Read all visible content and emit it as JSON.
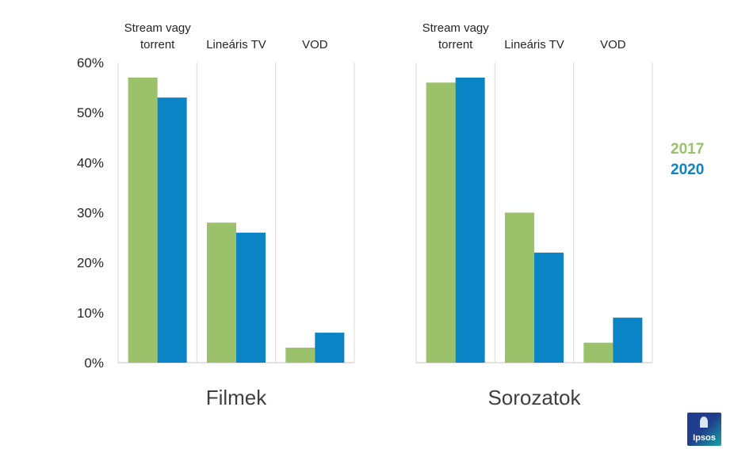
{
  "chart_data": [
    {
      "type": "bar",
      "title": "Filmek",
      "categories": [
        "Stream vagy torrent",
        "Lineáris TV",
        "VOD"
      ],
      "series": [
        {
          "name": "2017",
          "values": [
            57,
            28,
            3
          ]
        },
        {
          "name": "2020",
          "values": [
            53,
            26,
            6
          ]
        }
      ],
      "ylim": [
        0,
        60
      ],
      "yticks": [
        "0%",
        "10%",
        "20%",
        "30%",
        "40%",
        "50%",
        "60%"
      ],
      "ytick_values": [
        0,
        10,
        20,
        30,
        40,
        50,
        60
      ],
      "show_y_axis": true
    },
    {
      "type": "bar",
      "title": "Sorozatok",
      "categories": [
        "Stream vagy torrent",
        "Lineáris TV",
        "VOD"
      ],
      "series": [
        {
          "name": "2017",
          "values": [
            56,
            30,
            4
          ]
        },
        {
          "name": "2020",
          "values": [
            57,
            22,
            9
          ]
        }
      ],
      "ylim": [
        0,
        60
      ],
      "show_y_axis": false
    }
  ],
  "legend": {
    "placement": "right",
    "items": [
      {
        "label": "2017",
        "color": "#9bc26b"
      },
      {
        "label": "2020",
        "color": "#0b84c6"
      }
    ]
  },
  "colors": {
    "series_2017": "#9bc26b",
    "series_2020": "#0b84c6",
    "gridline": "#d9d9d9",
    "text": "#262626"
  },
  "logo": {
    "text": "Ipsos"
  }
}
